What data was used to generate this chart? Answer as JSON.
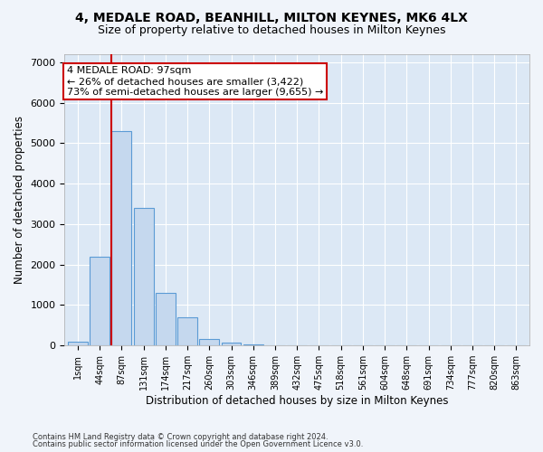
{
  "title1": "4, MEDALE ROAD, BEANHILL, MILTON KEYNES, MK6 4LX",
  "title2": "Size of property relative to detached houses in Milton Keynes",
  "xlabel": "Distribution of detached houses by size in Milton Keynes",
  "ylabel": "Number of detached properties",
  "bar_labels": [
    "1sqm",
    "44sqm",
    "87sqm",
    "131sqm",
    "174sqm",
    "217sqm",
    "260sqm",
    "303sqm",
    "346sqm",
    "389sqm",
    "432sqm",
    "475sqm",
    "518sqm",
    "561sqm",
    "604sqm",
    "648sqm",
    "691sqm",
    "734sqm",
    "777sqm",
    "820sqm",
    "863sqm"
  ],
  "bar_values": [
    100,
    2200,
    5300,
    3400,
    1300,
    700,
    155,
    80,
    30,
    8,
    3,
    0,
    0,
    0,
    0,
    0,
    0,
    0,
    0,
    0,
    0
  ],
  "bar_color": "#c5d8ee",
  "bar_edge_color": "#5b9bd5",
  "red_line_color": "#cc0000",
  "annotation_line1": "4 MEDALE ROAD: 97sqm",
  "annotation_line2": "← 26% of detached houses are smaller (3,422)",
  "annotation_line3": "73% of semi-detached houses are larger (9,655) →",
  "annotation_box_color": "#ffffff",
  "annotation_box_edge": "#cc0000",
  "ylim": [
    0,
    7200
  ],
  "yticks": [
    0,
    1000,
    2000,
    3000,
    4000,
    5000,
    6000,
    7000
  ],
  "footnote1": "Contains HM Land Registry data © Crown copyright and database right 2024.",
  "footnote2": "Contains public sector information licensed under the Open Government Licence v3.0.",
  "plot_bg_color": "#dce8f5",
  "fig_bg_color": "#f0f4fa",
  "grid_color": "#ffffff",
  "title1_fontsize": 10,
  "title2_fontsize": 9,
  "xlabel_fontsize": 8.5,
  "ylabel_fontsize": 8.5
}
